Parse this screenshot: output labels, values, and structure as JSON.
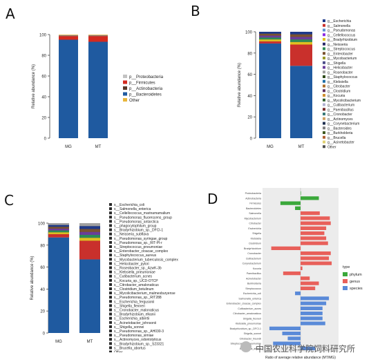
{
  "chart_data": [
    {
      "panel": "A",
      "type": "bar",
      "stacked": true,
      "categories": [
        "MG",
        "MT"
      ],
      "ylabel": "Relative abundance (%)",
      "ylim": [
        0,
        100
      ],
      "yticks": [
        0,
        20,
        40,
        60,
        80,
        100
      ],
      "legend_position": "right",
      "series": [
        {
          "name": "p__Proteobacteria",
          "color": "#c2c2c2",
          "values": [
            0.5,
            0.5
          ]
        },
        {
          "name": "p__Firmicutes",
          "color": "#d42a1f",
          "values": [
            3.5,
            5.5
          ]
        },
        {
          "name": "p__Actinobacteria",
          "color": "#5a3a2a",
          "values": [
            0.5,
            0.5
          ]
        },
        {
          "name": "p__Bacteroidetes",
          "color": "#1f5aa0",
          "values": [
            95.0,
            93.0
          ]
        },
        {
          "name": "Other",
          "color": "#e8b63c",
          "values": [
            0.5,
            0.5
          ]
        }
      ]
    },
    {
      "panel": "B",
      "type": "bar",
      "stacked": true,
      "categories": [
        "MG",
        "MT"
      ],
      "ylabel": "Relative abundance (%)",
      "ylim": [
        0,
        100
      ],
      "yticks": [
        0,
        20,
        40,
        60,
        80,
        100
      ],
      "legend_position": "right",
      "legend": [
        "g__Escherichia",
        "g__Salmonella",
        "g__Pseudomonas",
        "g__Cellellococcus",
        "g__Bradyrhizobium",
        "g__Neisseria",
        "g__Streptococcus",
        "g__Enterobacter",
        "g__Mycobacterium",
        "g__Shigella",
        "g__Helicobacter",
        "g__Roseobacter",
        "g__Staphylococcus",
        "g__Klebsiella",
        "g__Citrobacter",
        "g__Clostridium",
        "g__Kocuria",
        "g__Mycolicibacterium",
        "g__Cutibacterium",
        "g__Paenibacillus",
        "g__Cronobacter",
        "g__Actinomyces",
        "g__Corynebacterium",
        "g__Bacteroides",
        "g__Burkholderia",
        "g__Brucella",
        "g__Acinetobacter",
        "Other"
      ],
      "legend_colors": [
        "#1f3a8a",
        "#c9302c",
        "#5b8fd0",
        "#8a2be2",
        "#e0c020",
        "#2a2a6a",
        "#2e8b57",
        "#7a5230",
        "#9a9a2a",
        "#4d4d8a",
        "#6a3d9a",
        "#a0a0a0",
        "#2e4a1a",
        "#1e6fa8",
        "#ad6f2a",
        "#603060",
        "#d09030",
        "#306030",
        "#b0b0d0",
        "#7a2a2a",
        "#3a7a7a",
        "#d0a060",
        "#203050",
        "#7f7f7f",
        "#405a20",
        "#b06030",
        "#e0d070",
        "#505050"
      ],
      "series": [
        {
          "name": "g__Bacteroides",
          "color": "#1f5aa0",
          "values": [
            89,
            68
          ]
        },
        {
          "name": "g__Escherichia",
          "color": "#c9302c",
          "values": [
            2,
            20
          ]
        },
        {
          "name": "other genera",
          "color": "#6a5a3a",
          "values": [
            9,
            12
          ]
        }
      ]
    },
    {
      "panel": "C",
      "type": "bar",
      "stacked": true,
      "categories": [
        "MG",
        "MT"
      ],
      "ylabel": "Relative abundance (%)",
      "ylim": [
        0,
        100
      ],
      "yticks": [
        0,
        20,
        40,
        60,
        80,
        100
      ],
      "legend_position": "right",
      "legend": [
        "s__Escherichia_coli",
        "s__Salmonella_enterica",
        "s__Cellellococcus_marinamamalium",
        "s__Pseudomonas_fluorescens_group",
        "s__Pseudomonas_antarctica",
        "s__phagocytophilum_group",
        "s__Bradyrhizobium_sp._DFCI-1",
        "s__Neisseria_subflava",
        "s__Pseudomonas_syringae_group",
        "s__Pseudomonas_sp._RIT-PI-r",
        "s__Streptococcus_pneumoniae",
        "s__Enterobacter_cloacae_complex",
        "s__Staphylococcus_aureus",
        "s__Mycobacterium_tuberculosis_complex",
        "s__Helicobacter_pylori",
        "s__Roseobacter_sp._AzwK-3b",
        "s__Klebsiella_pneumoniae",
        "s__Cutibacterium_acnes",
        "s__Kocuria_sp._UCD-OTCP",
        "s__Citrobacter_amalonaticus",
        "s__Clostridium_botulinum",
        "s__Mycolicibacterium_malmesburyense",
        "s__Pseudomonas_sp._RIT288",
        "s__Escherichia_fergusonii",
        "s__Shigella_flexneri",
        "s__Cronobacter_malonaticus",
        "s__Bradyrhizobium_elkanii",
        "s__Escherichia_albertii",
        "s__Acinetobacter_johnsonii",
        "s__Shigella_sonnei",
        "s__Pseudomonas_sp._AH030-3",
        "s__Pseudomonas_simiae",
        "s__Actinomyces_odontolyticus",
        "s__Bradyrhizobium_sp._S23321",
        "s__Brucella_abortus",
        "Other"
      ],
      "series": [
        {
          "name": "Bacteroides",
          "color": "#1f5aa0",
          "values": [
            87,
            67
          ]
        },
        {
          "name": "s__Escherichia_coli",
          "color": "#c9302c",
          "values": [
            3,
            17
          ]
        },
        {
          "name": "other species",
          "color": "#6a5a3a",
          "values": [
            10,
            16
          ]
        }
      ]
    },
    {
      "panel": "D",
      "type": "bar",
      "orientation": "horizontal",
      "xlabel": "Ratio of average relative abundance (MT/MG)",
      "legend_title": "type",
      "legend_position": "right",
      "types": [
        {
          "name": "phylum",
          "color": "#3aa83a"
        },
        {
          "name": "genus",
          "color": "#e8605a"
        },
        {
          "name": "species",
          "color": "#5a8ad8"
        }
      ],
      "bars": [
        {
          "label": "Proteobacteria",
          "type": "phylum",
          "value": 0.0
        },
        {
          "label": "Actinobacteria",
          "type": "phylum",
          "value": 2.0
        },
        {
          "label": "Firmicutes",
          "type": "phylum",
          "value": -2.2
        },
        {
          "label": "Bacteroidetes",
          "type": "phylum",
          "value": -0.6
        },
        {
          "label": "Salmonella",
          "type": "genus",
          "value": 2.1
        },
        {
          "label": "Mycobacterium",
          "type": "genus",
          "value": 3.2
        },
        {
          "label": "Citrobacter",
          "type": "genus",
          "value": 3.3
        },
        {
          "label": "Escherichia",
          "type": "genus",
          "value": 2.8
        },
        {
          "label": "Shigella",
          "type": "genus",
          "value": 2.6
        },
        {
          "label": "Klebsiella",
          "type": "genus",
          "value": 2.8
        },
        {
          "label": "Clostridium",
          "type": "genus",
          "value": 3.0
        },
        {
          "label": "Bradyrhizobium",
          "type": "genus",
          "value": -3.2
        },
        {
          "label": "Cronobacter",
          "type": "genus",
          "value": 3.3
        },
        {
          "label": "Cutibacterium",
          "type": "genus",
          "value": 3.1
        },
        {
          "label": "Corynebacterium",
          "type": "genus",
          "value": 3.4
        },
        {
          "label": "Kocuria",
          "type": "genus",
          "value": 0.2
        },
        {
          "label": "Paenibacillus",
          "type": "genus",
          "value": -1.9
        },
        {
          "label": "Acinetobacter",
          "type": "genus",
          "value": 1.0
        },
        {
          "label": "Burkholderia",
          "type": "genus",
          "value": 2.0
        },
        {
          "label": "Streptococcus",
          "type": "genus",
          "value": 1.6
        },
        {
          "label": "Escherichia_coli",
          "type": "species",
          "value": -0.6
        },
        {
          "label": "Salmonella_enterica",
          "type": "species",
          "value": 3.1
        },
        {
          "label": "Enterobacter_cloacae_complex",
          "type": "species",
          "value": 2.8
        },
        {
          "label": "Cutibacterium_acnes",
          "type": "species",
          "value": 2.4
        },
        {
          "label": "Citrobacter_amalonaticus",
          "type": "species",
          "value": 2.4
        },
        {
          "label": "Shigella_flexneri",
          "type": "species",
          "value": 2.4
        },
        {
          "label": "Klebsiella_pneumoniae",
          "type": "species",
          "value": 2.7
        },
        {
          "label": "Bradyrhizobium_sp._DFCI-1",
          "type": "species",
          "value": -3.4
        },
        {
          "label": "Shigella_sonnei",
          "type": "species",
          "value": -2.0
        },
        {
          "label": "Citrobacter_freundii",
          "type": "species",
          "value": -1.4
        },
        {
          "label": "Streptococcus_pneumoniae",
          "type": "species",
          "value": -3.0
        },
        {
          "label": "Escherichia_albertii",
          "type": "species",
          "value": 1.6
        }
      ]
    }
  ],
  "panels": {
    "a": "A",
    "b": "B",
    "c": "C",
    "d": "D"
  },
  "watermark": "中国农业科学院饲料研究所"
}
